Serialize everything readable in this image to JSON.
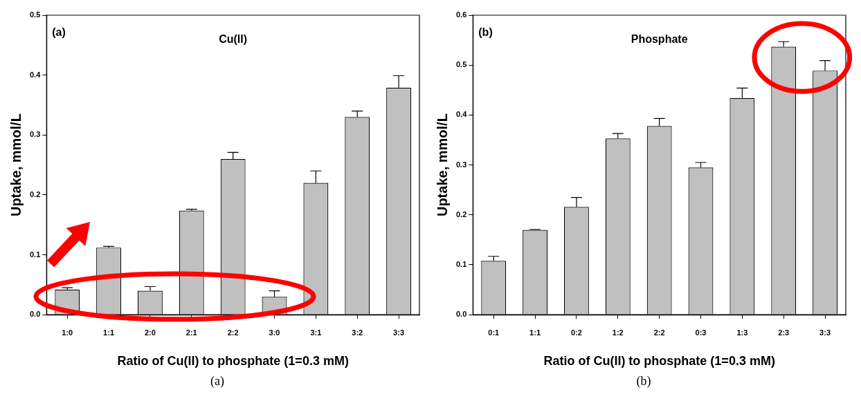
{
  "chart_data": [
    {
      "type": "bar",
      "title": "Cu(II)",
      "xlabel": "Ratio of Cu(II) to phosphate (1=0.3 mM)",
      "ylabel": "Uptake, mmol/L",
      "annotations": [
        "(a)",
        "(a)"
      ],
      "categories": [
        "1:0",
        "1:1",
        "2:0",
        "2:1",
        "2:2",
        "3:0",
        "3:1",
        "3:2",
        "3:3"
      ],
      "series": [
        {
          "color": "#c0c0c0",
          "values": [
            0.042,
            0.112,
            0.04,
            0.174,
            0.26,
            0.03,
            0.22,
            0.33,
            0.379
          ],
          "errors": [
            0.003,
            0.002,
            0.007,
            0.002,
            0.011,
            0.01,
            0.02,
            0.01,
            0.02
          ]
        }
      ],
      "ylim": [
        0,
        0.5
      ],
      "yticks": [
        {
          "value": 0,
          "label": "0.0"
        },
        0.1,
        0.2,
        0.3,
        0.4,
        0.5
      ],
      "grid": false,
      "legend": false
    },
    {
      "type": "bar",
      "title": "Phosphate",
      "xlabel": "Ratio of Cu(II) to phosphate (1=0.3 mM)",
      "ylabel": "Uptake, mmol/L",
      "annotations": [
        "(b)",
        "(b)"
      ],
      "categories": [
        "0:1",
        "1:1",
        "0:2",
        "1:2",
        "2:2",
        "0:3",
        "1:3",
        "2:3",
        "3:3"
      ],
      "series": [
        {
          "color": "#c0c0c0",
          "values": [
            0.108,
            0.17,
            0.216,
            0.353,
            0.378,
            0.295,
            0.434,
            0.537,
            0.489
          ],
          "errors": [
            0.009,
            0.001,
            0.019,
            0.01,
            0.015,
            0.01,
            0.02,
            0.01,
            0.02
          ]
        }
      ],
      "ylim": [
        0,
        0.6
      ],
      "yticks": [
        {
          "value": 0,
          "label": "0.0"
        },
        0.1,
        0.2,
        0.3,
        0.4,
        0.5,
        0.6
      ],
      "grid": false,
      "legend": false
    }
  ]
}
